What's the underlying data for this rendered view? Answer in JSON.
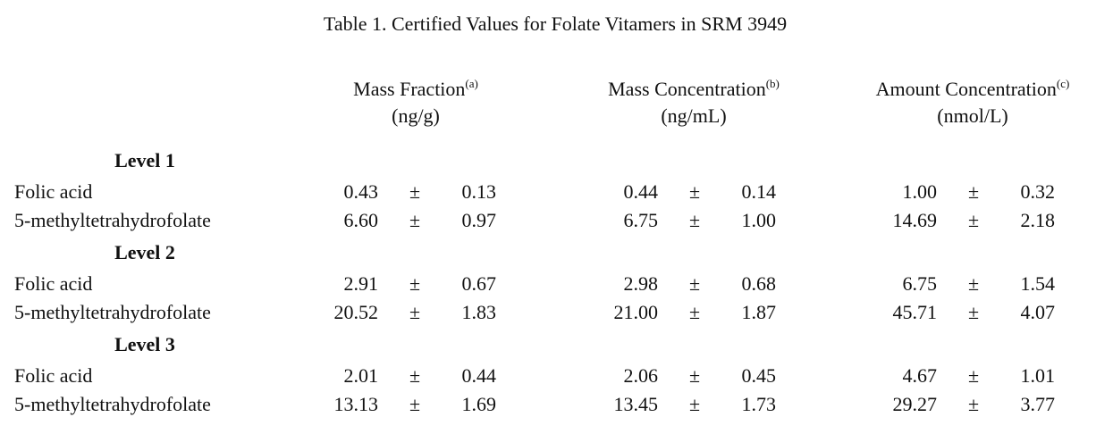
{
  "table": {
    "title": "Table 1.  Certified Values for Folate Vitamers in SRM 3949",
    "pm": "±",
    "columns": [
      {
        "name": "Mass Fraction",
        "note": "(a)",
        "unit": "(ng/g)"
      },
      {
        "name": "Mass Concentration",
        "note": "(b)",
        "unit": "(ng/mL)"
      },
      {
        "name": "Amount Concentration",
        "note": "(c)",
        "unit": "(nmol/L)"
      }
    ],
    "levels": [
      {
        "label": "Level 1",
        "rows": [
          {
            "name": "Folic acid",
            "values": [
              [
                "0.43",
                "0.13"
              ],
              [
                "0.44",
                "0.14"
              ],
              [
                "1.00",
                "0.32"
              ]
            ]
          },
          {
            "name": "5-methyltetrahydrofolate",
            "values": [
              [
                "6.60",
                "0.97"
              ],
              [
                "6.75",
                "1.00"
              ],
              [
                "14.69",
                "2.18"
              ]
            ]
          }
        ]
      },
      {
        "label": "Level 2",
        "rows": [
          {
            "name": "Folic acid",
            "values": [
              [
                "2.91",
                "0.67"
              ],
              [
                "2.98",
                "0.68"
              ],
              [
                "6.75",
                "1.54"
              ]
            ]
          },
          {
            "name": "5-methyltetrahydrofolate",
            "values": [
              [
                "20.52",
                "1.83"
              ],
              [
                "21.00",
                "1.87"
              ],
              [
                "45.71",
                "4.07"
              ]
            ]
          }
        ]
      },
      {
        "label": "Level 3",
        "rows": [
          {
            "name": "Folic acid",
            "values": [
              [
                "2.01",
                "0.44"
              ],
              [
                "2.06",
                "0.45"
              ],
              [
                "4.67",
                "1.01"
              ]
            ]
          },
          {
            "name": "5-methyltetrahydrofolate",
            "values": [
              [
                "13.13",
                "1.69"
              ],
              [
                "13.45",
                "1.73"
              ],
              [
                "29.27",
                "3.77"
              ]
            ]
          }
        ]
      }
    ]
  }
}
